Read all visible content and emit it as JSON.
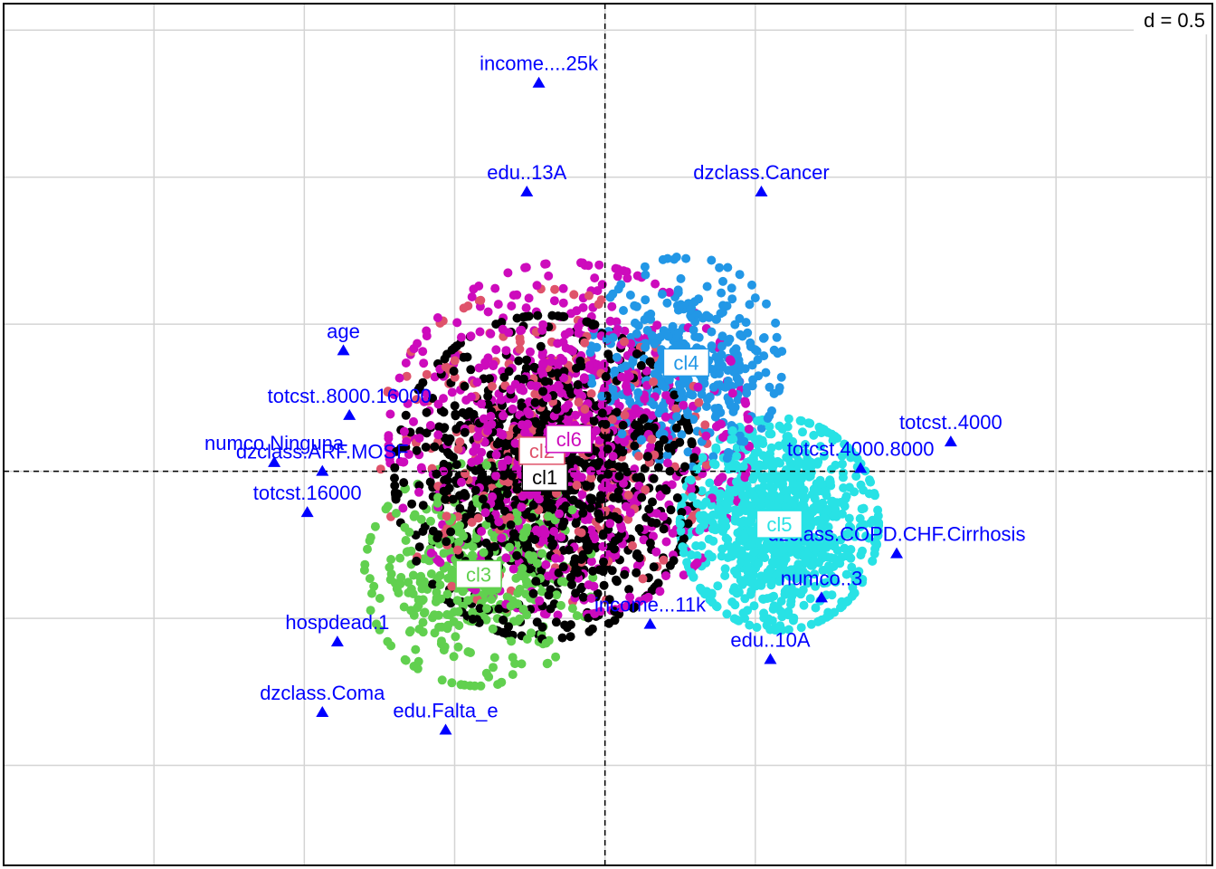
{
  "chart_data": {
    "type": "scatter",
    "scale_label": "d = 0.5",
    "grid_step": 0.5,
    "xlim": [
      -2.0,
      2.02
    ],
    "ylim": [
      -1.34,
      1.59
    ],
    "grid": true,
    "origin_lines": "dashed",
    "clusters": [
      {
        "name": "cl1",
        "color": "#000000",
        "center": [
          -0.2,
          -0.02
        ],
        "spread": [
          0.5,
          0.55
        ],
        "n": 950,
        "seed": 11
      },
      {
        "name": "cl2",
        "color": "#df536b",
        "center": [
          -0.21,
          0.07
        ],
        "spread": [
          0.55,
          0.55
        ],
        "n": 260,
        "seed": 23
      },
      {
        "name": "cl3",
        "color": "#61d04f",
        "center": [
          -0.42,
          -0.35
        ],
        "spread": [
          0.38,
          0.38
        ],
        "n": 380,
        "seed": 37
      },
      {
        "name": "cl4",
        "color": "#2297e6",
        "center": [
          0.27,
          0.37
        ],
        "spread": [
          0.32,
          0.36
        ],
        "n": 380,
        "seed": 41
      },
      {
        "name": "cl5",
        "color": "#28e2e5",
        "center": [
          0.58,
          -0.18
        ],
        "spread": [
          0.33,
          0.36
        ],
        "n": 950,
        "seed": 53
      },
      {
        "name": "cl6",
        "color": "#cd0bbc",
        "center": [
          -0.12,
          0.11
        ],
        "spread": [
          0.6,
          0.6
        ],
        "n": 820,
        "seed": 67
      }
    ],
    "category_points": [
      {
        "label": "income....25k",
        "x": -0.22,
        "y": 1.32
      },
      {
        "label": "edu..13A",
        "x": -0.26,
        "y": 0.95
      },
      {
        "label": "dzclass.Cancer",
        "x": 0.52,
        "y": 0.95
      },
      {
        "label": "totcst..4000",
        "x": 1.15,
        "y": 0.1
      },
      {
        "label": "totcst.4000.8000",
        "x": 0.85,
        "y": 0.01
      },
      {
        "label": "dzclass.COPD.CHF.Cirrhosis",
        "x": 0.97,
        "y": -0.28
      },
      {
        "label": "numco.Ninguna",
        "x": -1.1,
        "y": 0.03
      },
      {
        "label": "dzclass.ARF.MOSF",
        "x": -0.94,
        "y": 0.0
      },
      {
        "label": "totcst.16000",
        "x": -0.99,
        "y": -0.14
      },
      {
        "label": "hospdead.1",
        "x": -0.89,
        "y": -0.58
      },
      {
        "label": "dzclass.Coma",
        "x": -0.94,
        "y": -0.82
      },
      {
        "label": "edu.Falta_e",
        "x": -0.53,
        "y": -0.88
      },
      {
        "label": "edu..10A",
        "x": 0.55,
        "y": -0.64
      },
      {
        "label": "numco..3",
        "x": 0.72,
        "y": -0.43
      },
      {
        "label": "age",
        "x": -0.87,
        "y": 0.41
      },
      {
        "label": "income...11k",
        "x": 0.15,
        "y": -0.52
      },
      {
        "label": "totcst..8000.16000",
        "x": -0.85,
        "y": 0.19
      }
    ]
  }
}
